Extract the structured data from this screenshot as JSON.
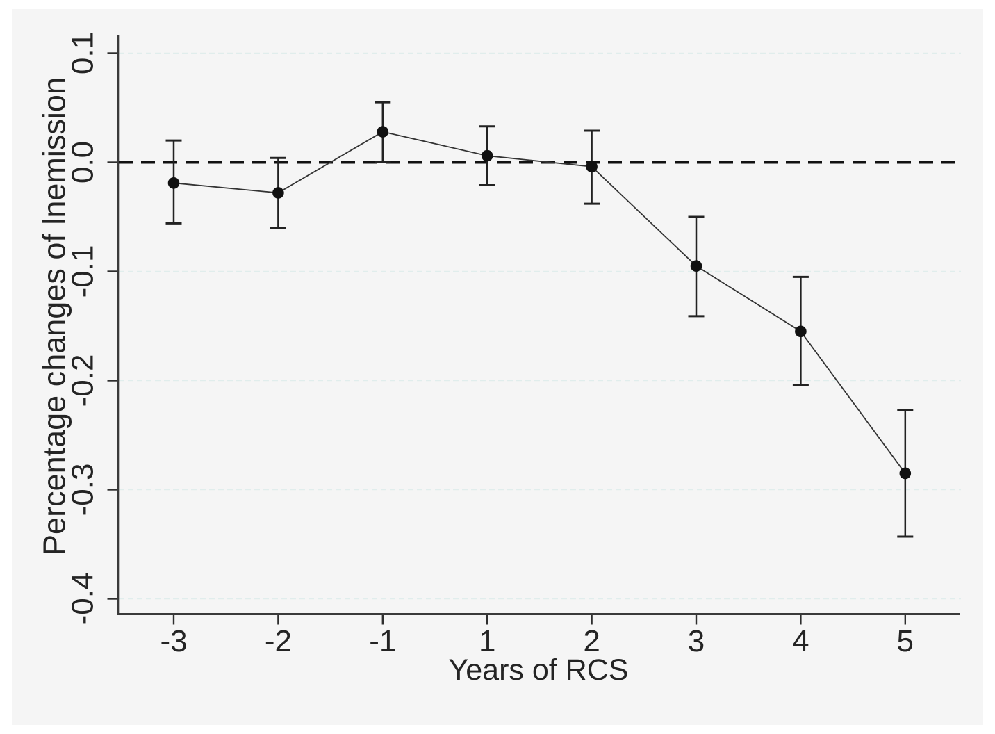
{
  "figure": {
    "background": "#ffffff",
    "panel_background": "#f5f5f5"
  },
  "chart_data": {
    "type": "line",
    "title": "",
    "xlabel": "Years of RCS",
    "ylabel": "Percentage changes of lnemission",
    "x_categories": [
      -3,
      -2,
      -1,
      1,
      2,
      3,
      4,
      5
    ],
    "x_tick_labels": [
      "-3",
      "-2",
      "-1",
      "1",
      "2",
      "3",
      "4",
      "5"
    ],
    "y_ticks": [
      0.1,
      0.0,
      -0.1,
      -0.2,
      -0.3,
      -0.4
    ],
    "y_tick_labels": [
      "0.1",
      "0.0",
      "-0.1",
      "-0.2",
      "-0.3",
      "-0.4"
    ],
    "ylim": [
      -0.414,
      0.116
    ],
    "zero_reference_line": 0,
    "grid": "horizontal-dotted",
    "legend": "none",
    "series": [
      {
        "marker": "filled-circle",
        "values": [
          -0.019,
          -0.028,
          0.028,
          0.006,
          -0.004,
          -0.095,
          -0.155,
          -0.285
        ],
        "ci_low": [
          -0.056,
          -0.06,
          0.0,
          -0.021,
          -0.038,
          -0.141,
          -0.204,
          -0.343
        ],
        "ci_high": [
          0.02,
          0.004,
          0.055,
          0.033,
          0.029,
          -0.05,
          -0.105,
          -0.227
        ]
      }
    ],
    "colors": {
      "line": "#333333",
      "marker": "#111111",
      "error_bar": "#222222",
      "zero_line": "#111111",
      "gridline": "#e0edec",
      "axis": "#3a3a3a",
      "text": "#242424"
    }
  }
}
